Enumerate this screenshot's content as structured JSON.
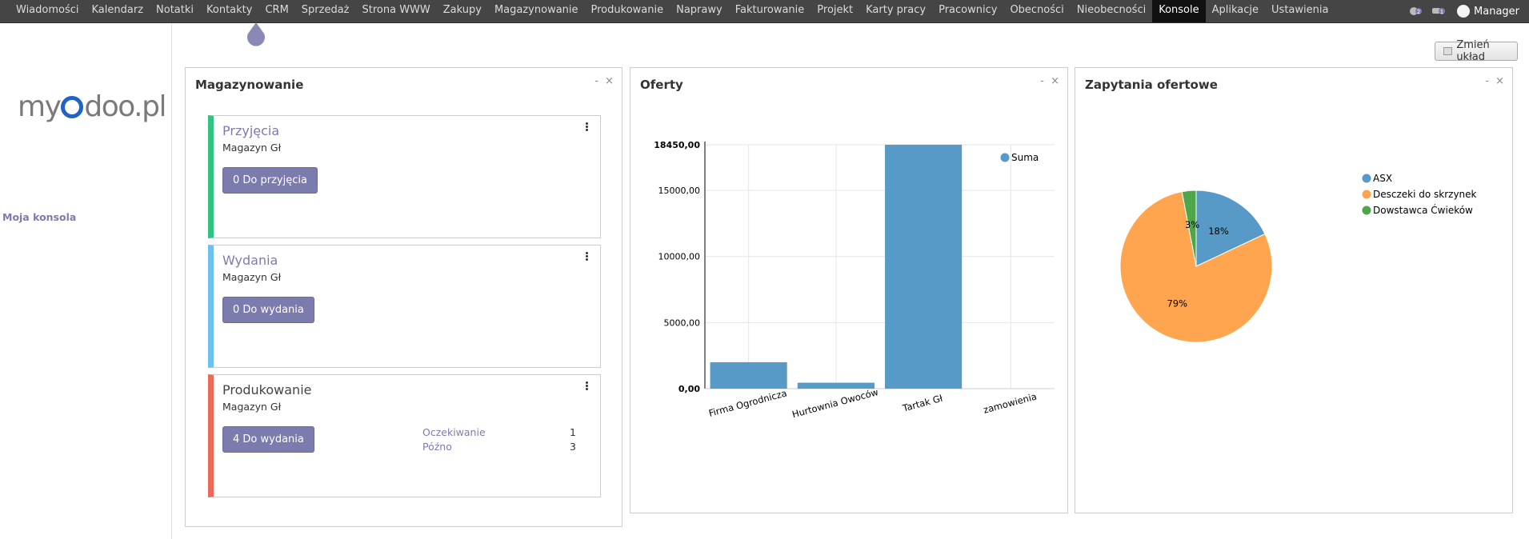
{
  "topmenu": {
    "items": [
      "Wiadomości",
      "Kalendarz",
      "Notatki",
      "Kontakty",
      "CRM",
      "Sprzedaż",
      "Strona WWW",
      "Zakupy",
      "Magazynowanie",
      "Produkowanie",
      "Naprawy",
      "Fakturowanie",
      "Projekt",
      "Karty pracy",
      "Pracownicy",
      "Obecności",
      "Nieobecności",
      "Konsole",
      "Aplikacje",
      "Ustawienia"
    ],
    "active": "Konsole",
    "chat_badge": "2",
    "message_badge": "1",
    "user": "Manager"
  },
  "sidebar": {
    "logo_text_left": "my",
    "logo_text_right": "doo.pl",
    "link": "Moja konsola"
  },
  "toolbar": {
    "change_layout": "Zmień układ"
  },
  "panels": {
    "inventory": {
      "title": "Magazynowanie",
      "controls": "- ×",
      "cards": [
        {
          "title": "Przyjęcia",
          "subtitle": "Magazyn Gł",
          "button": "0 Do przyjęcia",
          "color": "#30c381",
          "title_color": "#7c7bad"
        },
        {
          "title": "Wydania",
          "subtitle": "Magazyn Gł",
          "button": "0 Do wydania",
          "color": "#6cc1ed",
          "title_color": "#7c7bad"
        },
        {
          "title": "Produkowanie",
          "subtitle": "Magazyn Gł",
          "button": "4 Do wydania",
          "color": "#ed6a5a",
          "title_color": "#444444",
          "stats": [
            {
              "label": "Oczekiwanie",
              "value": "1"
            },
            {
              "label": "Późno",
              "value": "3"
            }
          ]
        }
      ]
    },
    "offers": {
      "title": "Oferty",
      "controls": "- ×"
    },
    "rfq": {
      "title": "Zapytania ofertowe",
      "controls": "- ×"
    }
  },
  "chart_data": [
    {
      "type": "bar",
      "title": "",
      "categories": [
        "Firma Ogrodnicza",
        "Hurtownia Owoców",
        "Tartak Gł",
        "zamowienia"
      ],
      "series": [
        {
          "name": "Suma",
          "values": [
            2000,
            450,
            18450,
            0
          ],
          "color": "#5799c7"
        }
      ],
      "y_ticks": [
        "0,00",
        "5000,00",
        "10000,00",
        "15000,00",
        "18450,00"
      ],
      "ylim": [
        0,
        18450
      ],
      "legend": "top-right",
      "grid": true
    },
    {
      "type": "pie",
      "labels": [
        "ASX",
        "Desczeki do skrzynek",
        "Dowstawca Ćwieków"
      ],
      "values": [
        18,
        79,
        3
      ],
      "value_labels": [
        "18%",
        "79%",
        "3%"
      ],
      "colors": [
        "#5799c7",
        "#ffa550",
        "#4ea64b"
      ],
      "legend": "top-right"
    }
  ]
}
